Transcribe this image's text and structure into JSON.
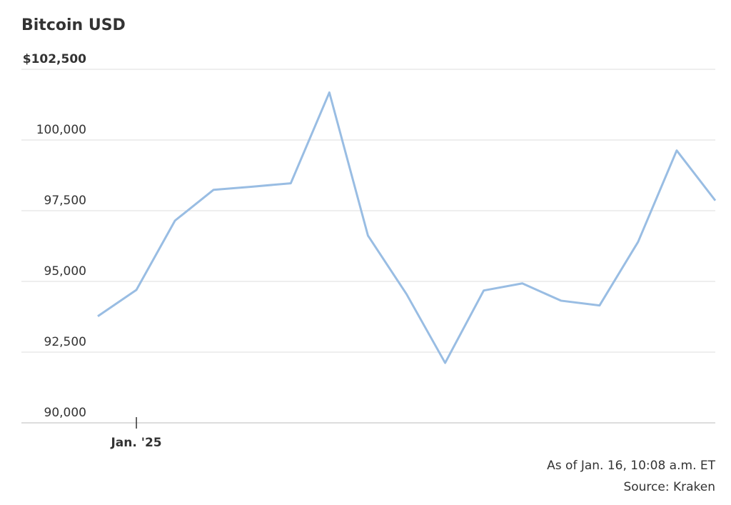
{
  "chart_data": {
    "type": "line",
    "title": "Bitcoin USD",
    "categories": [
      null,
      "Jan. '25",
      null,
      null,
      null,
      null,
      null,
      null,
      null,
      null,
      null,
      null,
      null,
      null,
      null,
      null,
      null
    ],
    "series": [
      {
        "name": "Bitcoin USD",
        "color": "#99bde3",
        "values": [
          93770,
          94700,
          97150,
          98240,
          98350,
          98470,
          101680,
          96620,
          94550,
          92120,
          94680,
          94930,
          94320,
          94150,
          96400,
          99630,
          97860
        ]
      }
    ],
    "ylim": [
      90000,
      102500
    ],
    "yticks": [
      {
        "value": 90000,
        "label": "90,000"
      },
      {
        "value": 92500,
        "label": "92,500"
      },
      {
        "value": 95000,
        "label": "95,000"
      },
      {
        "value": 97500,
        "label": "97,500"
      },
      {
        "value": 100000,
        "label": "100,000"
      },
      {
        "value": 102500,
        "label": "$102,500"
      }
    ],
    "grid": true,
    "notes": [
      "As of Jan. 16, 10:08 a.m. ET",
      "Source: Kraken"
    ]
  }
}
